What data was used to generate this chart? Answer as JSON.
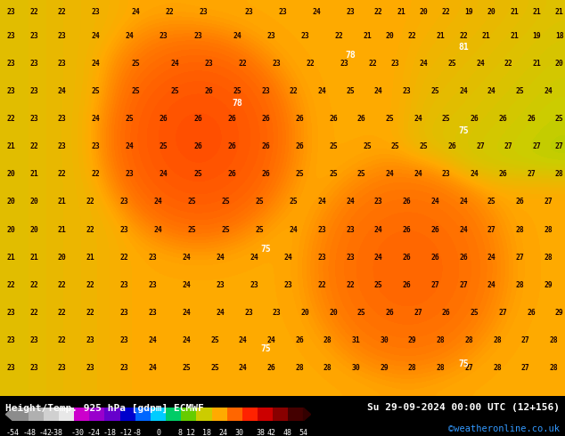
{
  "title_left": "Height/Temp. 925 hPa [gdpm] ECMWF",
  "title_right": "Su 29-09-2024 00:00 UTC (12+156)",
  "credit": "©weatheronline.co.uk",
  "colorbar_ticks": [
    -54,
    -48,
    -42,
    -38,
    -30,
    -24,
    -18,
    -12,
    -8,
    0,
    8,
    12,
    18,
    24,
    30,
    38,
    42,
    48,
    54
  ],
  "colorbar_labels": [
    "-54",
    "-48",
    "-42",
    "-38",
    "-30",
    "-24",
    "-18",
    "-12",
    "-8",
    "0",
    "8",
    "12",
    "18",
    "24",
    "30",
    "38",
    "42",
    "48",
    "54"
  ],
  "colorbar_colors": [
    "#8c8c8c",
    "#b0b0b0",
    "#d0d0d0",
    "#e8e8e8",
    "#cc00cc",
    "#9900cc",
    "#6600cc",
    "#0000cc",
    "#0066ff",
    "#00ccff",
    "#00cc66",
    "#66cc00",
    "#cccc00",
    "#ffaa00",
    "#ff6600",
    "#ff2200",
    "#cc0000",
    "#880000",
    "#440000"
  ],
  "fig_width": 6.34,
  "fig_height": 4.9,
  "dpi": 100,
  "credit_color": "#3399ff",
  "title_fontsize": 8.0,
  "credit_fontsize": 7.5,
  "colorbar_tick_fontsize": 6.0,
  "num_fontsize": 5.8
}
